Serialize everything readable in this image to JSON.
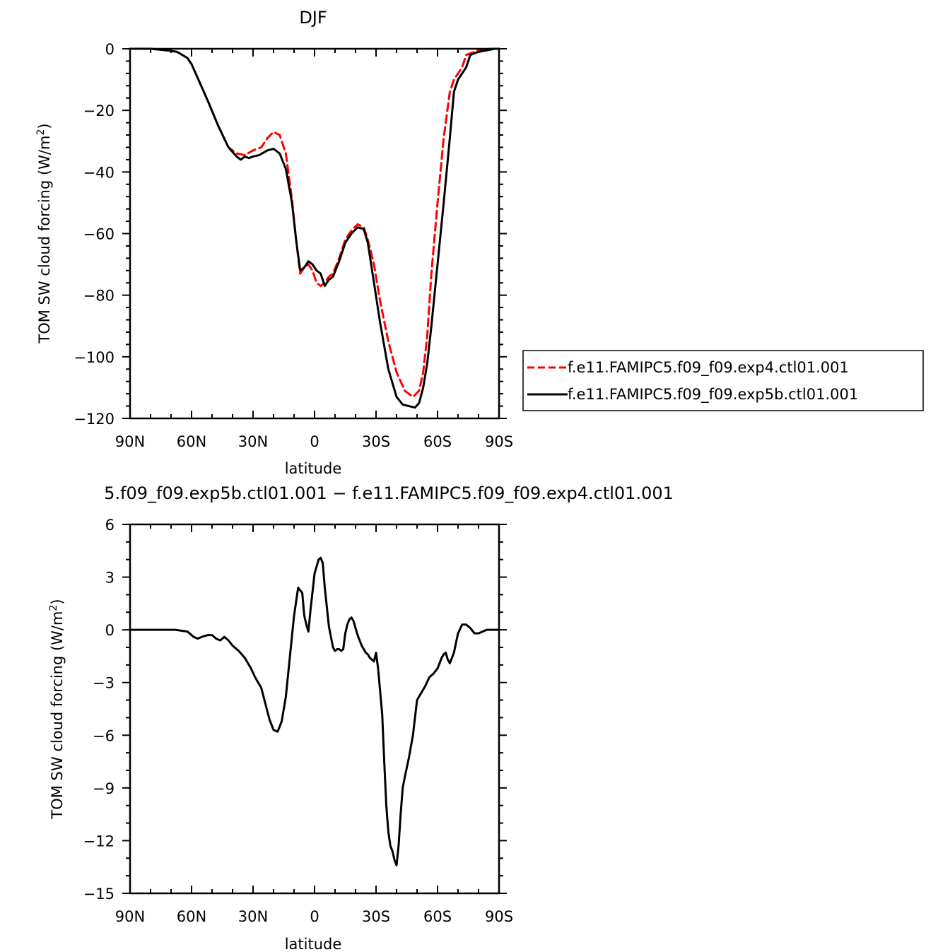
{
  "chart_data": [
    {
      "type": "line",
      "title": "DJF",
      "xlabel": "latitude",
      "ylabel": "TOM SW cloud forcing (W/m²)",
      "ylabel_base": "TOM SW cloud forcing (W/m",
      "ylabel_sup": "2",
      "ylabel_tail": ")",
      "xlim": [
        90,
        -90
      ],
      "ylim": [
        -120,
        0
      ],
      "xticks": [
        90,
        60,
        30,
        0,
        -30,
        -60,
        -90
      ],
      "xtick_labels": [
        "90N",
        "60N",
        "30N",
        "0",
        "30S",
        "60S",
        "90S"
      ],
      "yticks": [
        0,
        -20,
        -40,
        -60,
        -80,
        -100,
        -120
      ],
      "ytick_labels": [
        "0",
        "−20",
        "−40",
        "−60",
        "−80",
        "−100",
        "−120"
      ],
      "legend_position": "right",
      "series": [
        {
          "name": "f.e11.FAMIPC5.f09_f09.exp4.ctl01.001",
          "color": "#ff0000",
          "dash": "dashed",
          "x": [
            90,
            80,
            72,
            67,
            62,
            60,
            56,
            52,
            47,
            42,
            38,
            34,
            30,
            26,
            23,
            20,
            17,
            14,
            11,
            9,
            7,
            5,
            3,
            1,
            -1,
            -3,
            -5,
            -7,
            -9,
            -12,
            -15,
            -18,
            -21,
            -24,
            -26,
            -29,
            -32,
            -36,
            -40,
            -44,
            -48,
            -51,
            -53,
            -55,
            -57,
            -60,
            -63,
            -66,
            -68,
            -70,
            -72,
            -74,
            -76,
            -78,
            -80,
            -84,
            -88,
            -90
          ],
          "y": [
            0,
            0,
            -0.5,
            -1,
            -3,
            -5,
            -11,
            -17,
            -25,
            -32,
            -34,
            -34.5,
            -33,
            -32,
            -29,
            -27,
            -28,
            -34,
            -49,
            -62,
            -73,
            -71,
            -70,
            -72,
            -76,
            -77,
            -76,
            -74,
            -73,
            -68,
            -62,
            -59,
            -57,
            -58,
            -62,
            -70,
            -82,
            -95,
            -105,
            -111,
            -113,
            -111,
            -105,
            -93,
            -73,
            -50,
            -29,
            -14,
            -10,
            -8,
            -6,
            -2,
            -1.5,
            -1,
            -0.5,
            0,
            0,
            0
          ]
        },
        {
          "name": "f.e11.FAMIPC5.f09_f09.exp5b.ctl01.001",
          "color": "#000000",
          "dash": "solid",
          "x": [
            90,
            80,
            72,
            67,
            62,
            60,
            56,
            52,
            47,
            42,
            38,
            36,
            34,
            32,
            30,
            27,
            23,
            20,
            17,
            14,
            11,
            9,
            7,
            5,
            3,
            1,
            -1,
            -3,
            -5,
            -7,
            -9,
            -12,
            -15,
            -18,
            -21,
            -24,
            -26,
            -29,
            -32,
            -36,
            -40,
            -43,
            -46,
            -49,
            -51,
            -53,
            -55,
            -57,
            -60,
            -63,
            -66,
            -68,
            -70,
            -72,
            -74,
            -76,
            -78,
            -80,
            -84,
            -88,
            -90
          ],
          "y": [
            0,
            0,
            -0.5,
            -1,
            -3,
            -5,
            -11,
            -17,
            -25,
            -32,
            -35,
            -36,
            -35,
            -35.5,
            -35,
            -34.5,
            -33,
            -32.5,
            -34,
            -39,
            -50,
            -62,
            -72,
            -71,
            -69,
            -70,
            -72,
            -73,
            -77,
            -75,
            -74,
            -69,
            -63,
            -60,
            -58,
            -58.5,
            -63,
            -76,
            -89,
            -104,
            -113,
            -115.5,
            -116,
            -116.5,
            -115,
            -110,
            -102,
            -90,
            -70,
            -50,
            -29,
            -14,
            -10,
            -8,
            -6,
            -2,
            -1.5,
            -1,
            -0.5,
            0,
            0
          ]
        }
      ]
    },
    {
      "type": "line",
      "title": "5.f09_f09.exp5b.ctl01.001  −  f.e11.FAMIPC5.f09_f09.exp4.ctl01.001",
      "xlabel": "latitude",
      "ylabel": "TOM SW cloud forcing (W/m²)",
      "ylabel_base": "TOM SW cloud forcing (W/m",
      "ylabel_sup": "2",
      "ylabel_tail": ")",
      "xlim": [
        90,
        -90
      ],
      "ylim": [
        -15,
        6
      ],
      "xticks": [
        90,
        60,
        30,
        0,
        -30,
        -60,
        -90
      ],
      "xtick_labels": [
        "90N",
        "60N",
        "30N",
        "0",
        "30S",
        "60S",
        "90S"
      ],
      "yticks": [
        6,
        3,
        0,
        -3,
        -6,
        -9,
        -12,
        -15
      ],
      "ytick_labels": [
        "6",
        "3",
        "0",
        "−3",
        "−6",
        "−9",
        "−12",
        "−15"
      ],
      "series": [
        {
          "name": "",
          "color": "#000000",
          "dash": "solid",
          "x": [
            90,
            80,
            75,
            68,
            62,
            59,
            57,
            55,
            52,
            50,
            48,
            46,
            44,
            42,
            40,
            37,
            34,
            31,
            29,
            26,
            24,
            22,
            20,
            18,
            16,
            14,
            12,
            10,
            8,
            6,
            5,
            4,
            3,
            2,
            0,
            -2,
            -3,
            -4,
            -5,
            -7,
            -9,
            -10,
            -11,
            -12,
            -13,
            -14,
            -15,
            -16,
            -17,
            -18,
            -19,
            -21,
            -23,
            -25,
            -26,
            -27,
            -28,
            -29,
            -30,
            -31,
            -32,
            -33,
            -34,
            -35,
            -36,
            -37,
            -38,
            -39,
            -40,
            -41,
            -42,
            -43,
            -44,
            -46,
            -48,
            -50,
            -52,
            -54,
            -56,
            -58,
            -60,
            -62,
            -63,
            -64,
            -65,
            -66,
            -68,
            -70,
            -72,
            -74,
            -76,
            -78,
            -80,
            -84,
            -88,
            -90
          ],
          "y": [
            0,
            0,
            0,
            0,
            -0.1,
            -0.4,
            -0.5,
            -0.4,
            -0.3,
            -0.3,
            -0.5,
            -0.6,
            -0.4,
            -0.6,
            -0.9,
            -1.2,
            -1.6,
            -2.2,
            -2.7,
            -3.3,
            -4.2,
            -5.1,
            -5.7,
            -5.8,
            -5.2,
            -3.8,
            -1.5,
            0.8,
            2.4,
            2.1,
            0.8,
            0.3,
            -0.1,
            1.1,
            3.2,
            4,
            4.1,
            3.8,
            2.4,
            0.2,
            -1,
            -1.2,
            -1.1,
            -1.1,
            -1.2,
            -1.1,
            -0.2,
            0.3,
            0.6,
            0.7,
            0.5,
            -0.3,
            -0.9,
            -1.3,
            -1.4,
            -1.6,
            -1.7,
            -1.8,
            -1.3,
            -2.2,
            -3.5,
            -4.8,
            -7.5,
            -10,
            -11.5,
            -12.3,
            -12.6,
            -13.1,
            -13.4,
            -12.3,
            -10.5,
            -9,
            -8.4,
            -7.3,
            -6,
            -4,
            -3.6,
            -3.2,
            -2.7,
            -2.5,
            -2.2,
            -1.6,
            -1.4,
            -1.3,
            -1.7,
            -1.9,
            -1.3,
            -0.2,
            0.3,
            0.3,
            0.1,
            -0.2,
            -0.2,
            0,
            0,
            0
          ]
        }
      ]
    }
  ]
}
